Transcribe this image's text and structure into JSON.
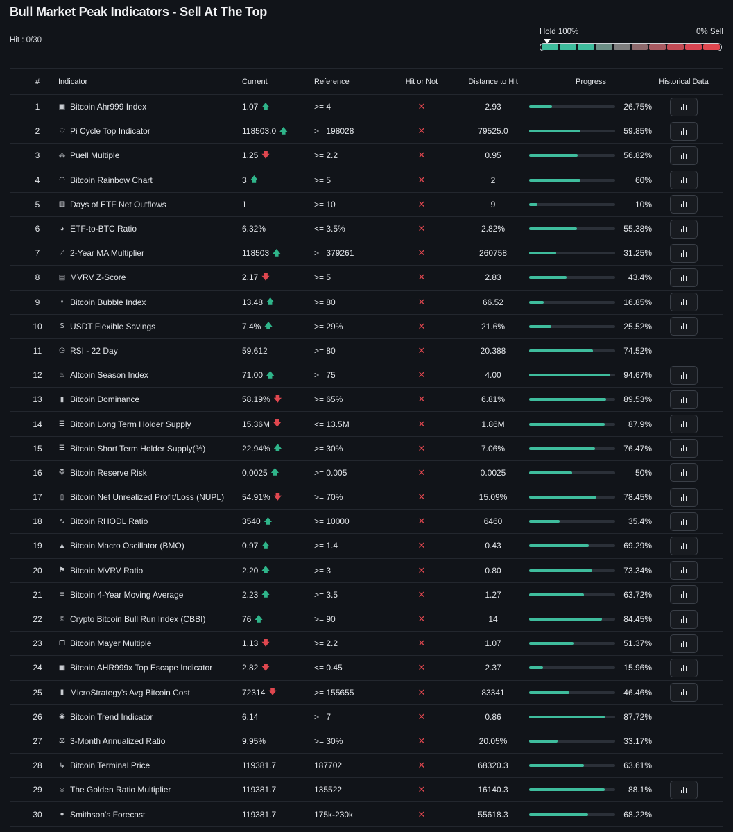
{
  "title": "Bull Market Peak Indicators - Sell At The Top",
  "hit_count": "Hit : 0/30",
  "gauge": {
    "left_label": "Hold 100%",
    "right_label": "0% Sell",
    "segment_colors": [
      "#3fbd9d",
      "#3fbd9d",
      "#3fbd9d",
      "#6c8f86",
      "#7e7e7e",
      "#8e6a6d",
      "#a85a61",
      "#c24b55",
      "#d94552",
      "#e0474f"
    ]
  },
  "headers": {
    "num": "#",
    "indicator": "Indicator",
    "current": "Current",
    "reference": "Reference",
    "hit": "Hit or Not",
    "distance": "Distance to Hit",
    "progress": "Progress",
    "historical": "Historical Data"
  },
  "rows": [
    {
      "num": "1",
      "name": "Bitcoin Ahr999 Index",
      "icon": "square-b-icon",
      "current": "1.07",
      "trend": "up",
      "reference": ">= 4",
      "hit": "✕",
      "distance": "2.93",
      "progress_pct": 26.75,
      "progress": "26.75%",
      "has_history": true
    },
    {
      "num": "2",
      "name": "Pi Cycle Top Indicator",
      "icon": "pi-icon",
      "current": "118503.0",
      "trend": "up",
      "reference": ">= 198028",
      "hit": "✕",
      "distance": "79525.0",
      "progress_pct": 59.85,
      "progress": "59.85%",
      "has_history": true
    },
    {
      "num": "3",
      "name": "Puell Multiple",
      "icon": "sparkle-icon",
      "current": "1.25",
      "trend": "down",
      "reference": ">= 2.2",
      "hit": "✕",
      "distance": "0.95",
      "progress_pct": 56.82,
      "progress": "56.82%",
      "has_history": true
    },
    {
      "num": "4",
      "name": "Bitcoin Rainbow Chart",
      "icon": "rainbow-icon",
      "current": "3",
      "trend": "up",
      "reference": ">= 5",
      "hit": "✕",
      "distance": "2",
      "progress_pct": 60,
      "progress": "60%",
      "has_history": true
    },
    {
      "num": "5",
      "name": "Days of ETF Net Outflows",
      "icon": "bars-icon",
      "current": "1",
      "trend": "",
      "reference": ">= 10",
      "hit": "✕",
      "distance": "9",
      "progress_pct": 10,
      "progress": "10%",
      "has_history": true
    },
    {
      "num": "6",
      "name": "ETF-to-BTC Ratio",
      "icon": "pie-icon",
      "current": "6.32%",
      "trend": "",
      "reference": "<= 3.5%",
      "hit": "✕",
      "distance": "2.82%",
      "progress_pct": 55.38,
      "progress": "55.38%",
      "has_history": true
    },
    {
      "num": "7",
      "name": "2-Year MA Multiplier",
      "icon": "line-chart-icon",
      "current": "118503",
      "trend": "up",
      "reference": ">= 379261",
      "hit": "✕",
      "distance": "260758",
      "progress_pct": 31.25,
      "progress": "31.25%",
      "has_history": true
    },
    {
      "num": "8",
      "name": "MVRV Z-Score",
      "icon": "clipboard-icon",
      "current": "2.17",
      "trend": "down",
      "reference": ">= 5",
      "hit": "✕",
      "distance": "2.83",
      "progress_pct": 43.4,
      "progress": "43.4%",
      "has_history": true
    },
    {
      "num": "9",
      "name": "Bitcoin Bubble Index",
      "icon": "bubbles-icon",
      "current": "13.48",
      "trend": "up",
      "reference": ">= 80",
      "hit": "✕",
      "distance": "66.52",
      "progress_pct": 16.85,
      "progress": "16.85%",
      "has_history": true
    },
    {
      "num": "10",
      "name": "USDT Flexible Savings",
      "icon": "dollar-icon",
      "current": "7.4%",
      "trend": "up",
      "reference": ">= 29%",
      "hit": "✕",
      "distance": "21.6%",
      "progress_pct": 25.52,
      "progress": "25.52%",
      "has_history": true
    },
    {
      "num": "11",
      "name": "RSI - 22 Day",
      "icon": "clock-icon",
      "current": "59.612",
      "trend": "",
      "reference": ">= 80",
      "hit": "✕",
      "distance": "20.388",
      "progress_pct": 74.52,
      "progress": "74.52%",
      "has_history": false
    },
    {
      "num": "12",
      "name": "Altcoin Season Index",
      "icon": "flame-icon",
      "current": "71.00",
      "trend": "up",
      "reference": ">= 75",
      "hit": "✕",
      "distance": "4.00",
      "progress_pct": 94.67,
      "progress": "94.67%",
      "has_history": true
    },
    {
      "num": "13",
      "name": "Bitcoin Dominance",
      "icon": "signal-icon",
      "current": "58.19%",
      "trend": "down",
      "reference": ">= 65%",
      "hit": "✕",
      "distance": "6.81%",
      "progress_pct": 89.53,
      "progress": "89.53%",
      "has_history": true
    },
    {
      "num": "14",
      "name": "Bitcoin Long Term Holder Supply",
      "icon": "database-icon",
      "current": "15.36M",
      "trend": "down",
      "reference": "<= 13.5M",
      "hit": "✕",
      "distance": "1.86M",
      "progress_pct": 87.9,
      "progress": "87.9%",
      "has_history": true
    },
    {
      "num": "15",
      "name": "Bitcoin Short Term Holder Supply(%)",
      "icon": "database-icon",
      "current": "22.94%",
      "trend": "up",
      "reference": ">= 30%",
      "hit": "✕",
      "distance": "7.06%",
      "progress_pct": 76.47,
      "progress": "76.47%",
      "has_history": true
    },
    {
      "num": "16",
      "name": "Bitcoin Reserve Risk",
      "icon": "coins-icon",
      "current": "0.0025",
      "trend": "up",
      "reference": ">= 0.005",
      "hit": "✕",
      "distance": "0.0025",
      "progress_pct": 50,
      "progress": "50%",
      "has_history": true
    },
    {
      "num": "17",
      "name": "Bitcoin Net Unrealized Profit/Loss (NUPL)",
      "icon": "receipt-icon",
      "current": "54.91%",
      "trend": "down",
      "reference": ">= 70%",
      "hit": "✕",
      "distance": "15.09%",
      "progress_pct": 78.45,
      "progress": "78.45%",
      "has_history": true
    },
    {
      "num": "18",
      "name": "Bitcoin RHODL Ratio",
      "icon": "pulse-icon",
      "current": "3540",
      "trend": "up",
      "reference": ">= 10000",
      "hit": "✕",
      "distance": "6460",
      "progress_pct": 35.4,
      "progress": "35.4%",
      "has_history": true
    },
    {
      "num": "19",
      "name": "Bitcoin Macro Oscillator (BMO)",
      "icon": "triangle-icon",
      "current": "0.97",
      "trend": "up",
      "reference": ">= 1.4",
      "hit": "✕",
      "distance": "0.43",
      "progress_pct": 69.29,
      "progress": "69.29%",
      "has_history": true
    },
    {
      "num": "20",
      "name": "Bitcoin MVRV Ratio",
      "icon": "flag-icon",
      "current": "2.20",
      "trend": "up",
      "reference": ">= 3",
      "hit": "✕",
      "distance": "0.80",
      "progress_pct": 73.34,
      "progress": "73.34%",
      "has_history": true
    },
    {
      "num": "21",
      "name": "Bitcoin 4-Year Moving Average",
      "icon": "list-icon",
      "current": "2.23",
      "trend": "up",
      "reference": ">= 3.5",
      "hit": "✕",
      "distance": "1.27",
      "progress_pct": 63.72,
      "progress": "63.72%",
      "has_history": true
    },
    {
      "num": "22",
      "name": "Crypto Bitcoin Bull Run Index (CBBI)",
      "icon": "copyright-icon",
      "current": "76",
      "trend": "up",
      "reference": ">= 90",
      "hit": "✕",
      "distance": "14",
      "progress_pct": 84.45,
      "progress": "84.45%",
      "has_history": true
    },
    {
      "num": "23",
      "name": "Bitcoin Mayer Multiple",
      "icon": "copy-icon",
      "current": "1.13",
      "trend": "down",
      "reference": ">= 2.2",
      "hit": "✕",
      "distance": "1.07",
      "progress_pct": 51.37,
      "progress": "51.37%",
      "has_history": true
    },
    {
      "num": "24",
      "name": "Bitcoin AHR999x Top Escape Indicator",
      "icon": "square-b-icon",
      "current": "2.82",
      "trend": "down",
      "reference": "<= 0.45",
      "hit": "✕",
      "distance": "2.37",
      "progress_pct": 15.96,
      "progress": "15.96%",
      "has_history": true
    },
    {
      "num": "25",
      "name": "MicroStrategy's Avg Bitcoin Cost",
      "icon": "signal-icon",
      "current": "72314",
      "trend": "down",
      "reference": ">= 155655",
      "hit": "✕",
      "distance": "83341",
      "progress_pct": 46.46,
      "progress": "46.46%",
      "has_history": true
    },
    {
      "num": "26",
      "name": "Bitcoin Trend Indicator",
      "icon": "coin-icon",
      "current": "6.14",
      "trend": "",
      "reference": ">= 7",
      "hit": "✕",
      "distance": "0.86",
      "progress_pct": 87.72,
      "progress": "87.72%",
      "has_history": false
    },
    {
      "num": "27",
      "name": "3-Month Annualized Ratio",
      "icon": "scale-icon",
      "current": "9.95%",
      "trend": "",
      "reference": ">= 30%",
      "hit": "✕",
      "distance": "20.05%",
      "progress_pct": 33.17,
      "progress": "33.17%",
      "has_history": false
    },
    {
      "num": "28",
      "name": "Bitcoin Terminal Price",
      "icon": "hook-icon",
      "current": "119381.7",
      "trend": "",
      "reference": "187702",
      "hit": "✕",
      "distance": "68320.3",
      "progress_pct": 63.61,
      "progress": "63.61%",
      "has_history": false
    },
    {
      "num": "29",
      "name": "The Golden Ratio Multiplier",
      "icon": "smile-icon",
      "current": "119381.7",
      "trend": "",
      "reference": "135522",
      "hit": "✕",
      "distance": "16140.3",
      "progress_pct": 88.1,
      "progress": "88.1%",
      "has_history": true
    },
    {
      "num": "30",
      "name": "Smithson's Forecast",
      "icon": "b-coin-icon",
      "current": "119381.7",
      "trend": "",
      "reference": "175k-230k",
      "hit": "✕",
      "distance": "55618.3",
      "progress_pct": 68.22,
      "progress": "68.22%",
      "has_history": false
    }
  ],
  "icon_glyphs": {
    "square-b-icon": "▣",
    "pi-icon": "♡",
    "sparkle-icon": "⁂",
    "rainbow-icon": "◠",
    "bars-icon": "▥",
    "pie-icon": "◕",
    "line-chart-icon": "⟋",
    "clipboard-icon": "▤",
    "bubbles-icon": "∘",
    "dollar-icon": "$",
    "clock-icon": "◷",
    "flame-icon": "♨",
    "signal-icon": "▮",
    "database-icon": "☰",
    "coins-icon": "❂",
    "receipt-icon": "▯",
    "pulse-icon": "∿",
    "triangle-icon": "▲",
    "flag-icon": "⚑",
    "list-icon": "≡",
    "copyright-icon": "©",
    "copy-icon": "❐",
    "coin-icon": "◉",
    "scale-icon": "⚖",
    "hook-icon": "↳",
    "smile-icon": "☺",
    "b-coin-icon": "●"
  },
  "arrows": {
    "up": "🡅",
    "down": "🡇"
  }
}
